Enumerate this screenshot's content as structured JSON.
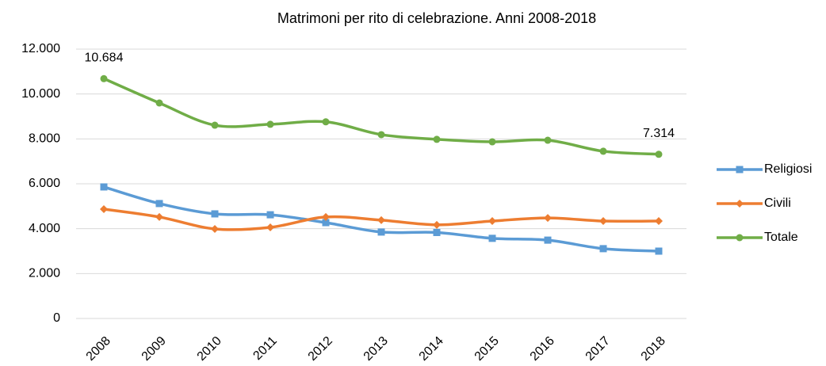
{
  "chart_data": {
    "type": "line",
    "title": "Matrimoni per rito di celebrazione. Anni 2008-2018",
    "categories": [
      "2008",
      "2009",
      "2010",
      "2011",
      "2012",
      "2013",
      "2014",
      "2015",
      "2016",
      "2017",
      "2018"
    ],
    "series": [
      {
        "name": "Religiosi",
        "color": "#5b9bd5",
        "marker": "square",
        "values": [
          5860,
          5120,
          4660,
          4620,
          4270,
          3850,
          3830,
          3570,
          3490,
          3110,
          3000
        ]
      },
      {
        "name": "Civili",
        "color": "#ed7d31",
        "marker": "diamond",
        "values": [
          4870,
          4520,
          3990,
          4060,
          4520,
          4380,
          4170,
          4340,
          4480,
          4340,
          4340
        ]
      },
      {
        "name": "Totale",
        "color": "#70ad47",
        "marker": "circle",
        "values": [
          10684,
          9600,
          8610,
          8650,
          8760,
          8190,
          7980,
          7870,
          7940,
          7450,
          7314
        ],
        "value_labels": [
          "10.684",
          null,
          null,
          null,
          null,
          null,
          null,
          null,
          null,
          null,
          "7.314"
        ]
      }
    ],
    "ylim": [
      0,
      12000
    ],
    "yticks": [
      0,
      {
        "value": 2000,
        "label": "2.000"
      },
      {
        "value": 4000,
        "label": "4.000"
      },
      {
        "value": 6000,
        "label": "6.000"
      },
      {
        "value": 8000,
        "label": "8.000"
      },
      {
        "value": 10000,
        "label": "10.000"
      },
      {
        "value": 12000,
        "label": "12.000"
      }
    ],
    "grid": true,
    "legend": "right",
    "smooth": true
  }
}
